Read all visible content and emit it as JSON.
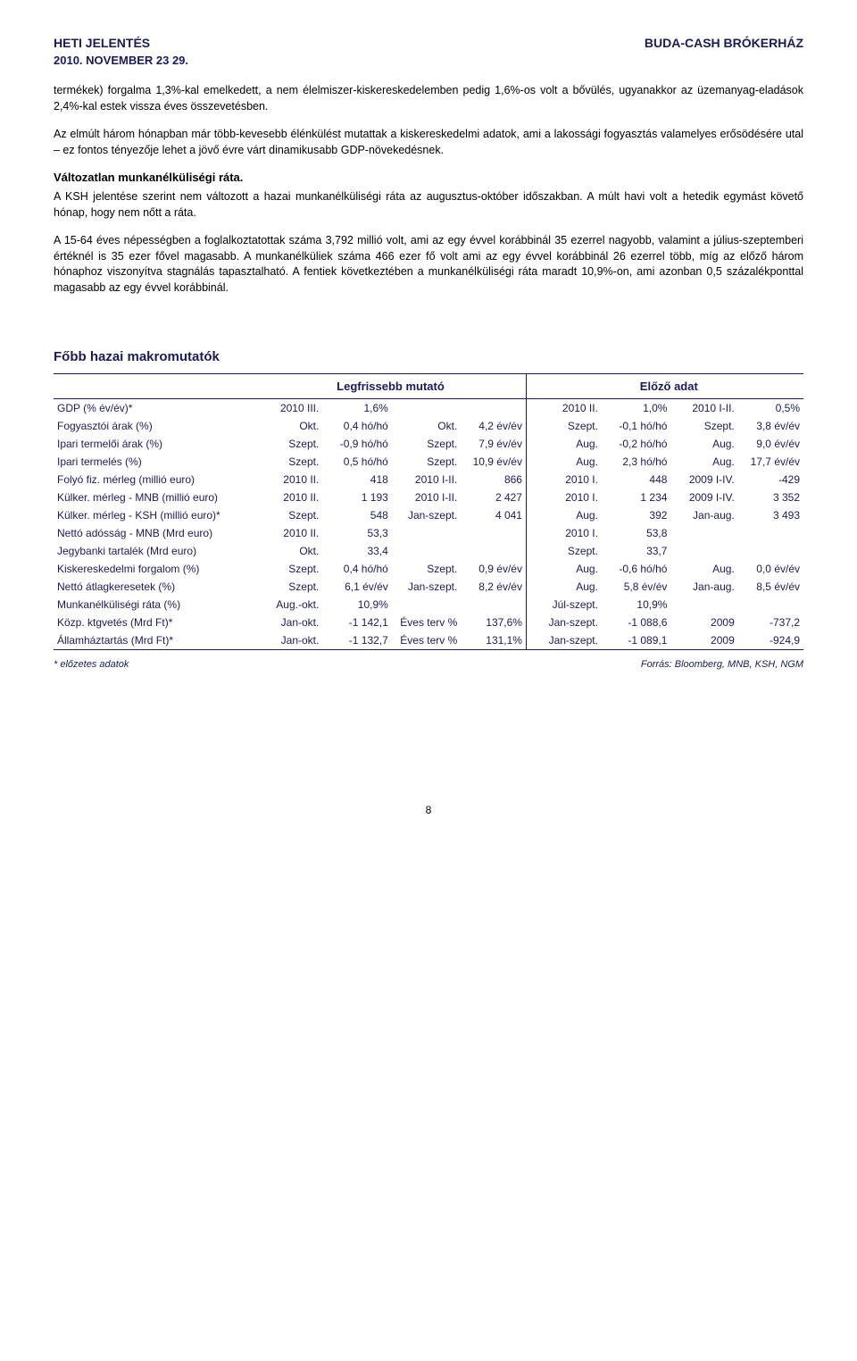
{
  "header": {
    "left": "HETI JELENTÉS",
    "right": "BUDA-CASH BRÓKERHÁZ",
    "date": "2010. NOVEMBER 23 29."
  },
  "paragraphs": {
    "p1": "termékek) forgalma 1,3%-kal emelkedett, a nem élelmiszer-kiskereskedelemben pedig 1,6%-os volt a bővülés, ugyanakkor az üzemanyag-eladások 2,4%-kal estek vissza éves összevetésben.",
    "p2": "Az elmúlt három hónapban már több-kevesebb élénkülést mutattak a kiskereskedelmi adatok, ami a lakossági fogyasztás valamelyes erősödésére utal – ez fontos tényezője lehet a jövő évre várt dinamikusabb GDP-növekedésnek.",
    "h1": "Változatlan munkanélküliségi ráta.",
    "p3": "A KSH jelentése szerint nem változott a hazai munkanélküliségi ráta az augusztus-október időszakban. A múlt havi volt a hetedik egymást követő hónap, hogy nem nőtt a ráta.",
    "p4": "A 15-64 éves népességben a foglalkoztatottak száma 3,792 millió volt, ami az egy évvel korábbinál 35 ezerrel nagyobb, valamint a július-szeptemberi értéknél is 35 ezer fővel magasabb. A munkanélküliek száma 466 ezer fő volt ami az egy évvel korábbinál 26 ezerrel több, míg az előző három hónaphoz viszonyítva stagnálás tapasztalható. A fentiek következtében a munkanélküliségi ráta maradt 10,9%-on, ami azonban 0,5 százalékponttal magasabb az egy évvel korábbinál."
  },
  "table": {
    "heading": "Főbb hazai makromutatók",
    "head_latest": "Legfrissebb mutató",
    "head_prev": "Előző adat",
    "rows": [
      {
        "label": "GDP (% év/év)*",
        "p1": "2010 III.",
        "v1": "1,6%",
        "p2": "",
        "v2": "",
        "p3": "2010 II.",
        "v3": "1,0%",
        "p4": "2010 I-II.",
        "v4": "0,5%"
      },
      {
        "label": "Fogyasztói árak (%)",
        "p1": "Okt.",
        "v1": "0,4 hó/hó",
        "p2": "Okt.",
        "v2": "4,2 év/év",
        "p3": "Szept.",
        "v3": "-0,1 hó/hó",
        "p4": "Szept.",
        "v4": "3,8 év/év"
      },
      {
        "label": "Ipari termelői árak (%)",
        "p1": "Szept.",
        "v1": "-0,9 hó/hó",
        "p2": "Szept.",
        "v2": "7,9 év/év",
        "p3": "Aug.",
        "v3": "-0,2 hó/hó",
        "p4": "Aug.",
        "v4": "9,0 év/év"
      },
      {
        "label": "Ipari termelés (%)",
        "p1": "Szept.",
        "v1": "0,5 hó/hó",
        "p2": "Szept.",
        "v2": "10,9 év/év",
        "p3": "Aug.",
        "v3": "2,3 hó/hó",
        "p4": "Aug.",
        "v4": "17,7 év/év"
      },
      {
        "label": "Folyó fiz. mérleg (millió euro)",
        "p1": "2010 II.",
        "v1": "418",
        "p2": "2010 I-II.",
        "v2": "866",
        "p3": "2010 I.",
        "v3": "448",
        "p4": "2009 I-IV.",
        "v4": "-429"
      },
      {
        "label": "Külker. mérleg - MNB (millió euro)",
        "p1": "2010 II.",
        "v1": "1 193",
        "p2": "2010 I-II.",
        "v2": "2 427",
        "p3": "2010 I.",
        "v3": "1 234",
        "p4": "2009 I-IV.",
        "v4": "3 352"
      },
      {
        "label": "Külker. mérleg - KSH (millió euro)*",
        "p1": "Szept.",
        "v1": "548",
        "p2": "Jan-szept.",
        "v2": "4 041",
        "p3": "Aug.",
        "v3": "392",
        "p4": "Jan-aug.",
        "v4": "3 493"
      },
      {
        "label": "Nettó adósság - MNB (Mrd euro)",
        "p1": "2010 II.",
        "v1": "53,3",
        "p2": "",
        "v2": "",
        "p3": "2010 I.",
        "v3": "53,8",
        "p4": "",
        "v4": ""
      },
      {
        "label": "Jegybanki tartalék (Mrd euro)",
        "p1": "Okt.",
        "v1": "33,4",
        "p2": "",
        "v2": "",
        "p3": "Szept.",
        "v3": "33,7",
        "p4": "",
        "v4": ""
      },
      {
        "label": "Kiskereskedelmi forgalom (%)",
        "p1": "Szept.",
        "v1": "0,4 hó/hó",
        "p2": "Szept.",
        "v2": "0,9 év/év",
        "p3": "Aug.",
        "v3": "-0,6 hó/hó",
        "p4": "Aug.",
        "v4": "0,0 év/év"
      },
      {
        "label": "Nettó átlagkeresetek (%)",
        "p1": "Szept.",
        "v1": "6,1 év/év",
        "p2": "Jan-szept.",
        "v2": "8,2 év/év",
        "p3": "Aug.",
        "v3": "5,8 év/év",
        "p4": "Jan-aug.",
        "v4": "8,5 év/év"
      },
      {
        "label": "Munkanélküliségi ráta (%)",
        "p1": "Aug.-okt.",
        "v1": "10,9%",
        "p2": "",
        "v2": "",
        "p3": "Júl-szept.",
        "v3": "10,9%",
        "p4": "",
        "v4": ""
      },
      {
        "label": "Közp. ktgvetés (Mrd Ft)*",
        "p1": "Jan-okt.",
        "v1": "-1 142,1",
        "p2": "Éves terv %",
        "v2": "137,6%",
        "p3": "Jan-szept.",
        "v3": "-1 088,6",
        "p4": "2009",
        "v4": "-737,2"
      },
      {
        "label": "Államháztartás (Mrd Ft)*",
        "p1": "Jan-okt.",
        "v1": "-1 132,7",
        "p2": "Éves terv %",
        "v2": "131,1%",
        "p3": "Jan-szept.",
        "v3": "-1 089,1",
        "p4": "2009",
        "v4": "-924,9"
      }
    ],
    "footnote_left": "* előzetes adatok",
    "footnote_right": "Forrás: Bloomberg, MNB, KSH, NGM"
  },
  "page_number": "8",
  "colors": {
    "brand": "#1a1a5c",
    "text": "#000000",
    "background": "#ffffff"
  }
}
